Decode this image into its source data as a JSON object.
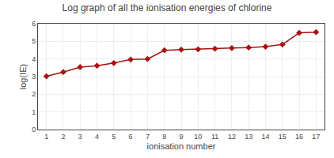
{
  "chart_data": {
    "type": "line",
    "title": "Log graph of all the ionisation energies of chlorine",
    "xlabel": "ionisation number",
    "ylabel": "log(IE)",
    "x": [
      1,
      2,
      3,
      4,
      5,
      6,
      7,
      8,
      9,
      10,
      11,
      12,
      13,
      14,
      15,
      16,
      17
    ],
    "values": [
      3.02,
      3.26,
      3.54,
      3.62,
      3.77,
      3.97,
      4.0,
      4.49,
      4.53,
      4.55,
      4.58,
      4.62,
      4.65,
      4.7,
      4.82,
      5.48,
      5.52
    ],
    "color": "#aa1111",
    "marker": "diamond",
    "xlim": [
      0.5,
      17.5
    ],
    "ylim": [
      0,
      6
    ],
    "xticks": [
      1,
      2,
      3,
      4,
      5,
      6,
      7,
      8,
      9,
      10,
      11,
      12,
      13,
      14,
      15,
      16,
      17
    ],
    "yticks": [
      0,
      1,
      2,
      3,
      4,
      5,
      6
    ],
    "grid": true
  }
}
